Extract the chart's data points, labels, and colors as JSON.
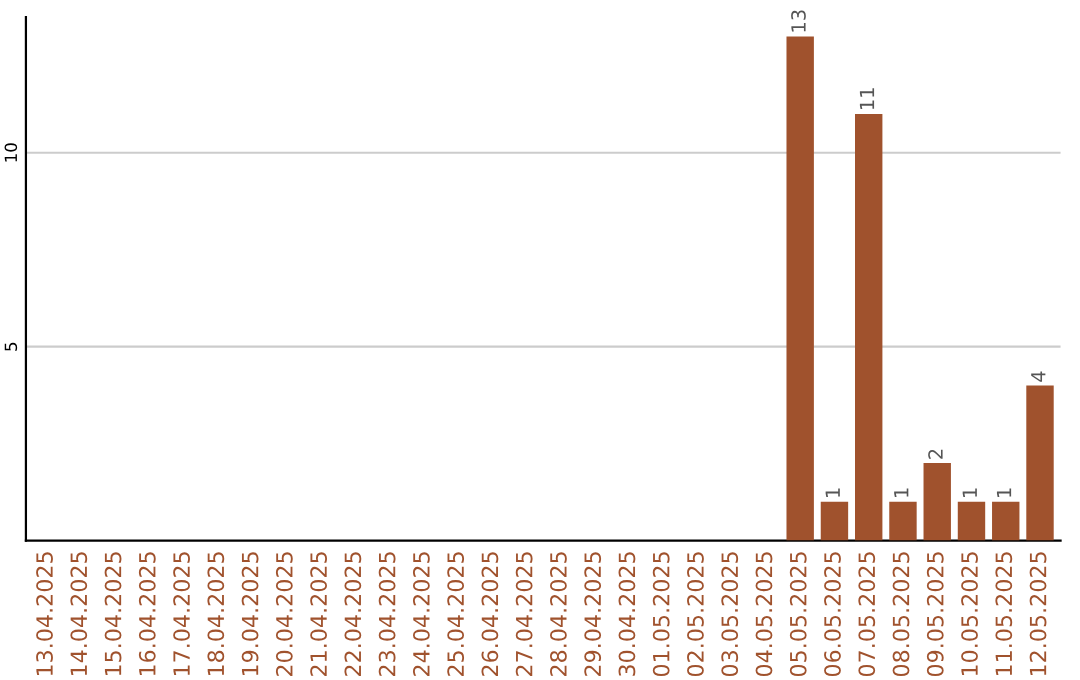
{
  "chart_data": {
    "type": "bar",
    "categories": [
      "13.04.2025",
      "14.04.2025",
      "15.04.2025",
      "16.04.2025",
      "17.04.2025",
      "18.04.2025",
      "19.04.2025",
      "20.04.2025",
      "21.04.2025",
      "22.04.2025",
      "23.04.2025",
      "24.04.2025",
      "25.04.2025",
      "26.04.2025",
      "27.04.2025",
      "28.04.2025",
      "29.04.2025",
      "30.04.2025",
      "01.05.2025",
      "02.05.2025",
      "03.05.2025",
      "04.05.2025",
      "05.05.2025",
      "06.05.2025",
      "07.05.2025",
      "08.05.2025",
      "09.05.2025",
      "10.05.2025",
      "11.05.2025",
      "12.05.2025"
    ],
    "values": [
      0,
      0,
      0,
      0,
      0,
      0,
      0,
      0,
      0,
      0,
      0,
      0,
      0,
      0,
      0,
      0,
      0,
      0,
      0,
      0,
      0,
      0,
      13,
      1,
      11,
      1,
      2,
      1,
      1,
      4
    ],
    "value_labels": [
      null,
      null,
      null,
      null,
      null,
      null,
      null,
      null,
      null,
      null,
      null,
      null,
      null,
      null,
      null,
      null,
      null,
      null,
      null,
      null,
      null,
      null,
      "13",
      "1",
      "11",
      "1",
      "2",
      "1",
      "1",
      "4"
    ],
    "color": "#a0522d",
    "ylim": [
      0,
      13.5
    ],
    "yticks": [
      5,
      10
    ],
    "grid": "y"
  }
}
